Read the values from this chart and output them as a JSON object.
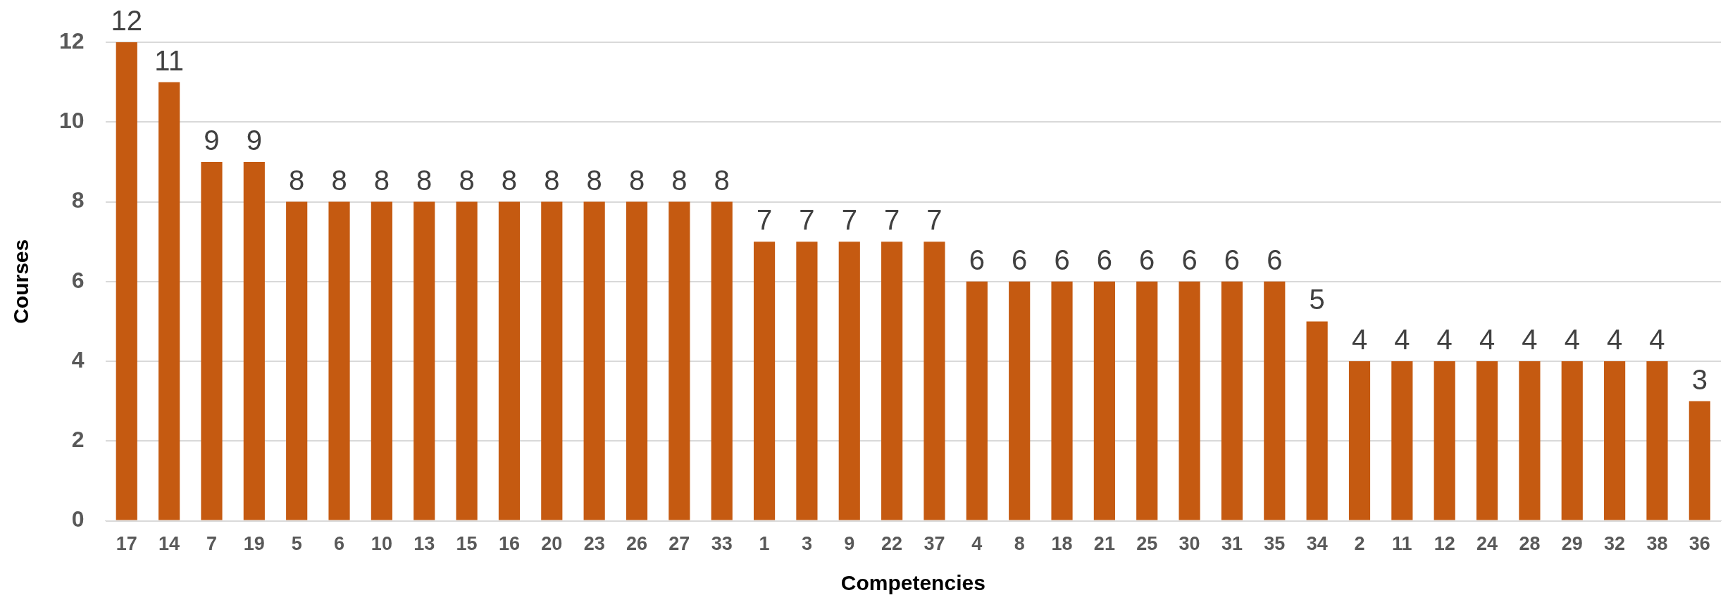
{
  "chart_data": {
    "type": "bar",
    "xlabel": "Competencies",
    "ylabel": "Courses",
    "categories": [
      "17",
      "14",
      "7",
      "19",
      "5",
      "6",
      "10",
      "13",
      "15",
      "16",
      "20",
      "23",
      "26",
      "27",
      "33",
      "1",
      "3",
      "9",
      "22",
      "37",
      "4",
      "8",
      "18",
      "21",
      "25",
      "30",
      "31",
      "35",
      "34",
      "2",
      "11",
      "12",
      "24",
      "28",
      "29",
      "32",
      "38",
      "36"
    ],
    "values": [
      12,
      11,
      9,
      9,
      8,
      8,
      8,
      8,
      8,
      8,
      8,
      8,
      8,
      8,
      8,
      7,
      7,
      7,
      7,
      7,
      6,
      6,
      6,
      6,
      6,
      6,
      6,
      6,
      5,
      4,
      4,
      4,
      4,
      4,
      4,
      4,
      4,
      3
    ],
    "color": "#c55a11",
    "ylim": [
      0,
      12
    ],
    "yticks": [
      0,
      2,
      4,
      6,
      8,
      10,
      12
    ],
    "grid": "y",
    "data_labels": true,
    "legend": false
  }
}
